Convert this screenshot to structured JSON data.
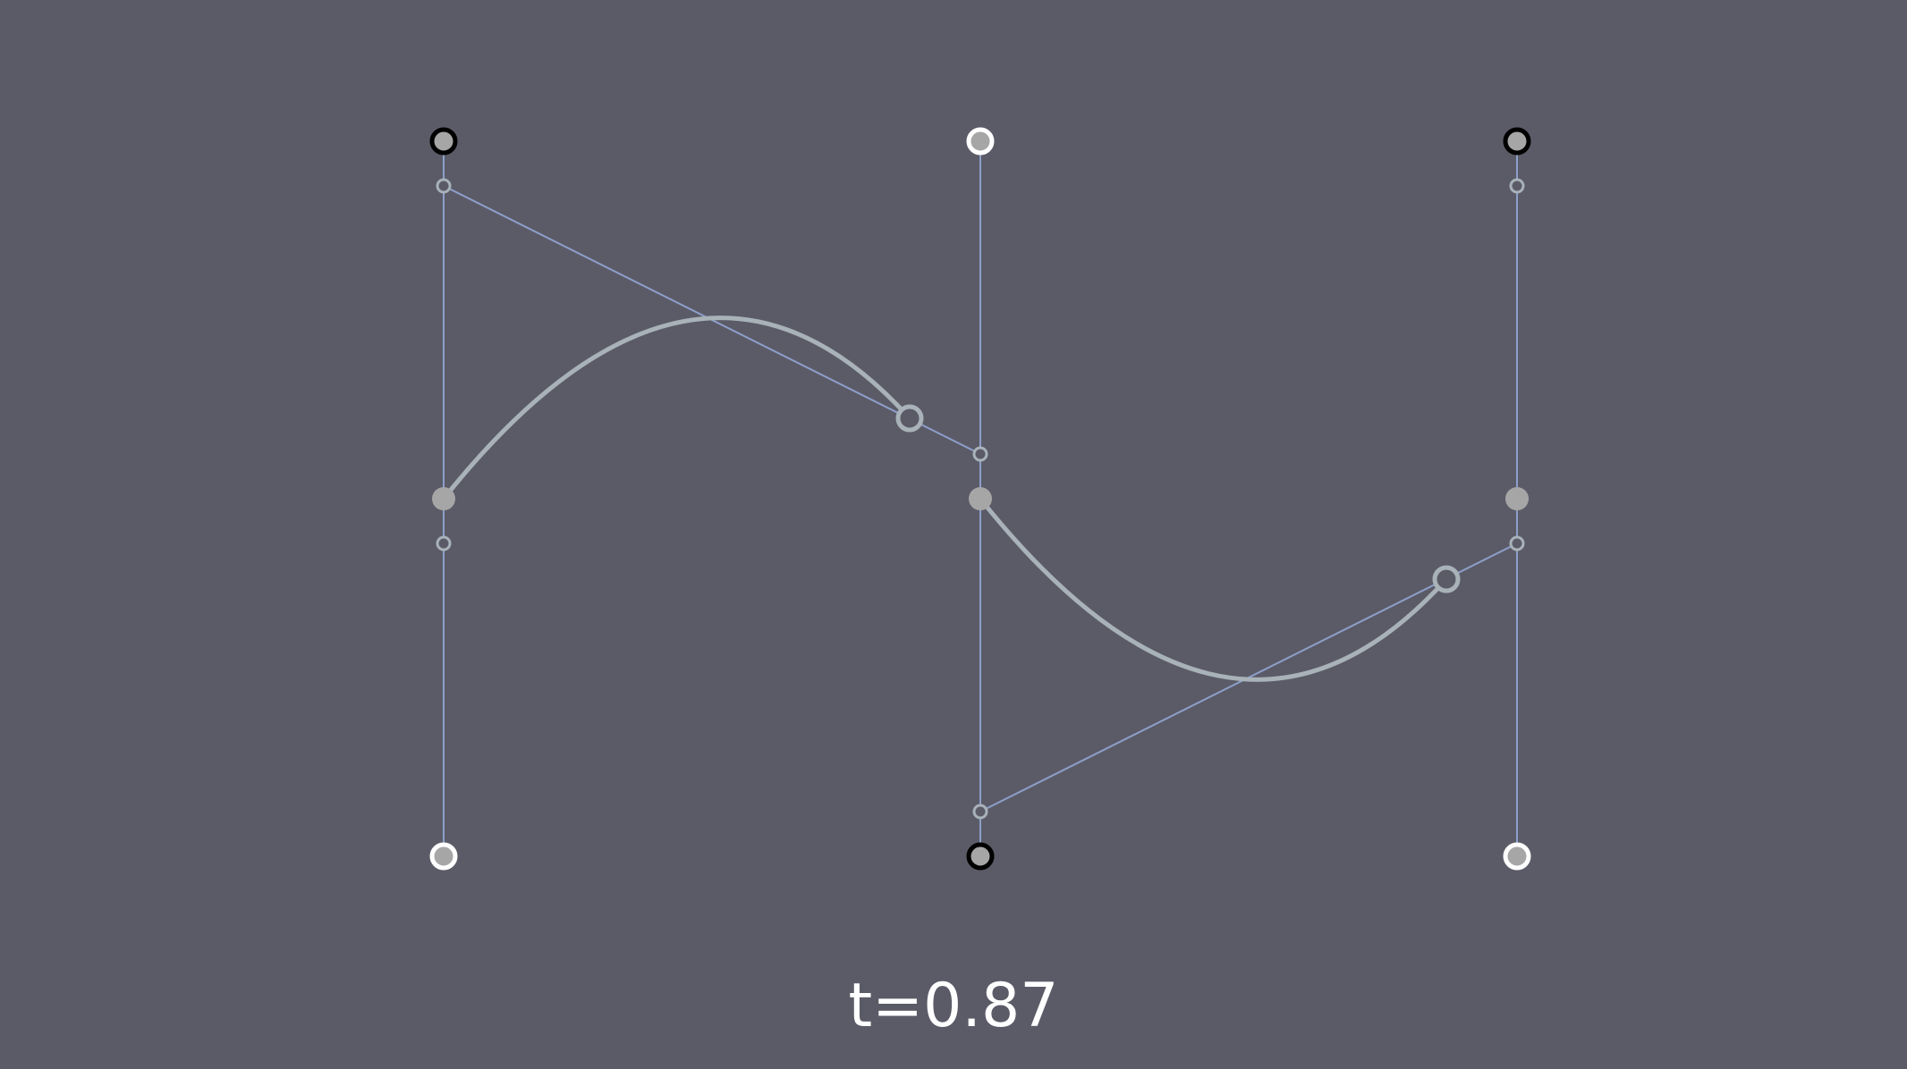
{
  "caption": {
    "t_text": "t=0.87"
  },
  "diagram": {
    "t": 0.87,
    "colors": {
      "background": "#5b5b68",
      "guide_line": "#8d9fc9",
      "curve": "#a8b2b8",
      "anchor_fill": "#a6a6a6",
      "ring_white": "#ffffff",
      "ring_black": "#000000",
      "label": "#ffffff"
    },
    "columns": [
      {
        "name": "left",
        "top_handle_ring": "black",
        "bottom_handle_ring": "white"
      },
      {
        "name": "middle",
        "top_handle_ring": "white",
        "bottom_handle_ring": "black"
      },
      {
        "name": "right",
        "top_handle_ring": "black",
        "bottom_handle_ring": "white"
      }
    ]
  }
}
